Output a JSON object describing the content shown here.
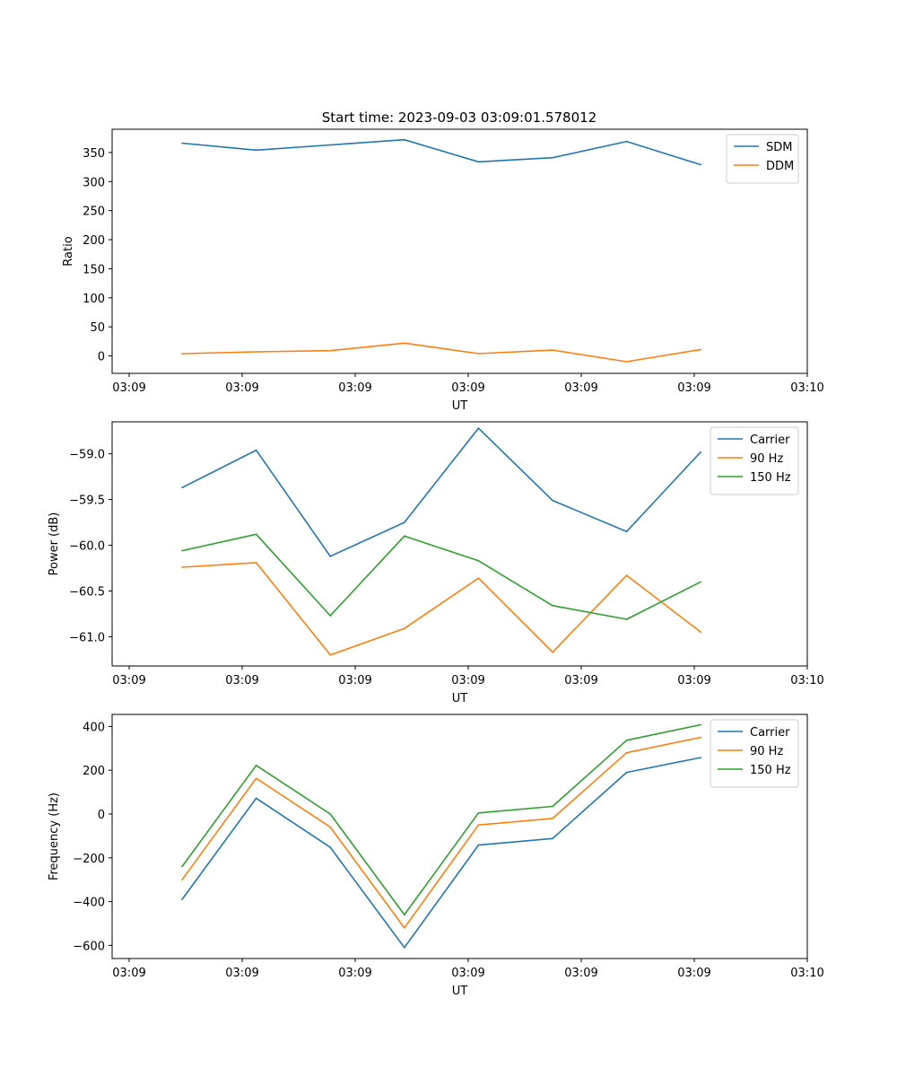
{
  "chart_data": [
    {
      "type": "line",
      "title": "Start time: 2023-09-03 03:09:01.578012",
      "xlabel": "UT",
      "ylabel": "Ratio",
      "x_tick_labels": [
        "03:09",
        "03:09",
        "03:09",
        "03:09",
        "03:09",
        "03:09",
        "03:10"
      ],
      "y_ticks": [
        0,
        50,
        100,
        150,
        200,
        250,
        300,
        350
      ],
      "ylim": [
        -30,
        390
      ],
      "x": [
        1,
        2,
        3,
        4,
        5,
        6,
        7,
        8
      ],
      "series": [
        {
          "name": "SDM",
          "color": "#1f77b4",
          "values": [
            366,
            354,
            363,
            372,
            334,
            341,
            369,
            329
          ]
        },
        {
          "name": "DDM",
          "color": "#ff7f0e",
          "values": [
            4,
            7,
            9,
            22,
            4,
            10,
            -10,
            11
          ]
        }
      ]
    },
    {
      "type": "line",
      "title": "",
      "xlabel": "UT",
      "ylabel": "Power (dB)",
      "x_tick_labels": [
        "03:09",
        "03:09",
        "03:09",
        "03:09",
        "03:09",
        "03:09",
        "03:10"
      ],
      "y_ticks": [
        -61.0,
        -60.5,
        -60.0,
        -59.5,
        -59.0
      ],
      "y_tick_labels": [
        "−61.0",
        "−60.5",
        "−60.0",
        "−59.5",
        "−59.0"
      ],
      "ylim": [
        -61.32,
        -58.65
      ],
      "x": [
        1,
        2,
        3,
        4,
        5,
        6,
        7,
        8
      ],
      "series": [
        {
          "name": "Carrier",
          "color": "#1f77b4",
          "values": [
            -59.37,
            -58.96,
            -60.12,
            -59.75,
            -58.72,
            -59.51,
            -59.85,
            -58.98
          ]
        },
        {
          "name": "90 Hz",
          "color": "#ff7f0e",
          "values": [
            -60.24,
            -60.19,
            -61.2,
            -60.91,
            -60.36,
            -61.17,
            -60.33,
            -60.95
          ]
        },
        {
          "name": "150 Hz",
          "color": "#2ca02c",
          "values": [
            -60.06,
            -59.88,
            -60.77,
            -59.9,
            -60.17,
            -60.66,
            -60.81,
            -60.4
          ]
        }
      ]
    },
    {
      "type": "line",
      "title": "",
      "xlabel": "UT",
      "ylabel": "Frequency (Hz)",
      "x_tick_labels": [
        "03:09",
        "03:09",
        "03:09",
        "03:09",
        "03:09",
        "03:09",
        "03:10"
      ],
      "y_ticks": [
        -600,
        -400,
        -200,
        0,
        200,
        400
      ],
      "y_tick_labels": [
        "−600",
        "−400",
        "−200",
        "0",
        "200",
        "400"
      ],
      "ylim": [
        -660,
        455
      ],
      "x": [
        1,
        2,
        3,
        4,
        5,
        6,
        7,
        8
      ],
      "series": [
        {
          "name": "Carrier",
          "color": "#1f77b4",
          "values": [
            -390,
            72,
            -152,
            -610,
            -142,
            -112,
            190,
            258
          ]
        },
        {
          "name": "90 Hz",
          "color": "#ff7f0e",
          "values": [
            -300,
            163,
            -60,
            -520,
            -50,
            -20,
            280,
            350
          ]
        },
        {
          "name": "150 Hz",
          "color": "#2ca02c",
          "values": [
            -240,
            222,
            0,
            -460,
            5,
            35,
            337,
            408
          ]
        }
      ]
    }
  ]
}
